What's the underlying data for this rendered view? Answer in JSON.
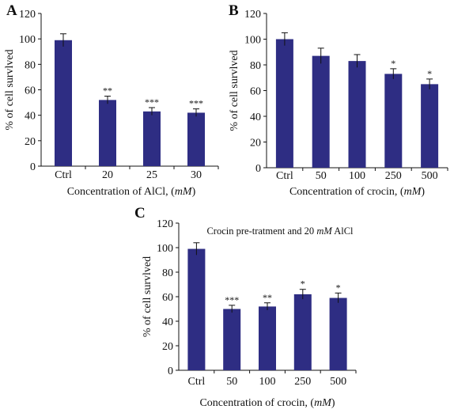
{
  "chart_data": [
    {
      "panel": "A",
      "type": "bar",
      "ylabel": "% of cell survlved",
      "xlabel_prefix": "Concentration of AlCl, (",
      "xlabel_unit": "mM",
      "xlabel_suffix": ")",
      "ylim": [
        0,
        120
      ],
      "yticks": [
        "0",
        "20",
        "40",
        "60",
        "80",
        "100",
        "120"
      ],
      "categories": [
        "Ctrl",
        "20",
        "25",
        "30"
      ],
      "values": [
        99,
        52,
        43,
        42
      ],
      "errors": [
        5,
        3,
        3,
        3
      ],
      "significance": [
        "",
        "**",
        "***",
        "***"
      ],
      "bar_color": "#2e2d83"
    },
    {
      "panel": "B",
      "type": "bar",
      "ylabel": "% of cell survlved",
      "xlabel_prefix": "Concentration of crocin, (",
      "xlabel_unit": "mM",
      "xlabel_suffix": ")",
      "ylim": [
        0,
        120
      ],
      "yticks": [
        "0",
        "20",
        "40",
        "60",
        "80",
        "100",
        "120"
      ],
      "categories": [
        "Ctrl",
        "50",
        "100",
        "250",
        "500"
      ],
      "values": [
        100,
        87,
        83,
        73,
        65
      ],
      "errors": [
        5,
        6,
        5,
        4,
        4
      ],
      "significance": [
        "",
        "",
        "",
        "*",
        "*"
      ],
      "bar_color": "#2e2d83"
    },
    {
      "panel": "C",
      "type": "bar",
      "title_prefix": "Crocin pre-tratment and 20 ",
      "title_unit": "mM",
      "title_suffix": " AlCl",
      "ylabel": "% of cell survlved",
      "xlabel_prefix": "Concentration of crocin, (",
      "xlabel_unit": "mM",
      "xlabel_suffix": ")",
      "ylim": [
        0,
        120
      ],
      "yticks": [
        "0",
        "20",
        "40",
        "60",
        "80",
        "100",
        "120"
      ],
      "categories": [
        "Ctrl",
        "50",
        "100",
        "250",
        "500"
      ],
      "values": [
        99,
        50,
        52,
        62,
        59
      ],
      "errors": [
        5,
        3,
        3,
        4,
        4
      ],
      "significance": [
        "",
        "***",
        "**",
        "*",
        "*"
      ],
      "bar_color": "#2e2d83"
    }
  ]
}
